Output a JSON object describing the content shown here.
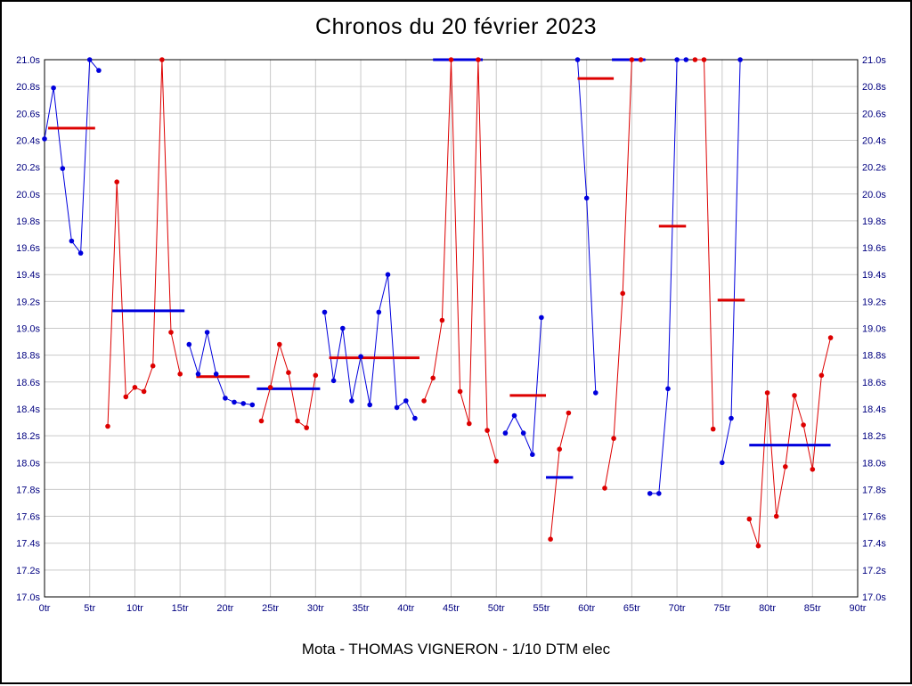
{
  "title": "Chronos du 20 février 2023",
  "footer": "Mota - THOMAS VIGNERON - 1/10 DTM elec",
  "chart_data": {
    "type": "line",
    "title": "Chronos du 20 février 2023",
    "x_unit": "tr",
    "y_unit": "s",
    "xlim": [
      0,
      90
    ],
    "ylim": [
      17.0,
      21.0
    ],
    "x_tick_step": 5,
    "y_tick_step": 0.2,
    "grid": true,
    "grid_color": "#c9c9c9",
    "frame_color": "#000000",
    "axis_label_color": "#000080",
    "legend": "none",
    "colors": {
      "blue": "#0000dd",
      "red": "#dd0000"
    },
    "x_ticks": [
      "0tr",
      "5tr",
      "10tr",
      "15tr",
      "20tr",
      "25tr",
      "30tr",
      "35tr",
      "40tr",
      "45tr",
      "50tr",
      "55tr",
      "60tr",
      "65tr",
      "70tr",
      "75tr",
      "80tr",
      "85tr",
      "90tr"
    ],
    "y_ticks": [
      "21.0s",
      "20.8s",
      "20.6s",
      "20.4s",
      "20.2s",
      "20.0s",
      "19.8s",
      "19.6s",
      "19.4s",
      "19.2s",
      "19.0s",
      "18.8s",
      "18.6s",
      "18.4s",
      "18.2s",
      "18.0s",
      "17.8s",
      "17.6s",
      "17.4s",
      "17.2s",
      "17.0s"
    ],
    "stints": [
      {
        "color": "blue",
        "laps": [
          [
            0,
            20.41
          ],
          [
            1,
            20.79
          ],
          [
            2,
            20.19
          ],
          [
            3,
            19.65
          ],
          [
            4,
            19.56
          ],
          [
            5,
            21.0
          ],
          [
            6,
            20.92
          ]
        ],
        "mean": {
          "value": 20.49,
          "from": 0.4,
          "to": 5.6,
          "color": "red"
        }
      },
      {
        "color": "red",
        "laps": [
          [
            7,
            18.27
          ],
          [
            8,
            20.09
          ],
          [
            9,
            18.49
          ],
          [
            10,
            18.56
          ],
          [
            11,
            18.53
          ],
          [
            12,
            18.72
          ],
          [
            13,
            21.0
          ],
          [
            14,
            18.97
          ],
          [
            15,
            18.66
          ]
        ],
        "mean": {
          "value": 19.13,
          "from": 7.5,
          "to": 15.5,
          "color": "blue"
        }
      },
      {
        "color": "blue",
        "laps": [
          [
            16,
            18.88
          ],
          [
            17,
            18.66
          ],
          [
            18,
            18.97
          ],
          [
            19,
            18.66
          ],
          [
            20,
            18.48
          ],
          [
            21,
            18.45
          ],
          [
            22,
            18.44
          ],
          [
            23,
            18.43
          ]
        ],
        "mean": {
          "value": 18.64,
          "from": 16.8,
          "to": 22.7,
          "color": "red"
        }
      },
      {
        "color": "red",
        "laps": [
          [
            24,
            18.31
          ],
          [
            25,
            18.56
          ],
          [
            26,
            18.88
          ],
          [
            27,
            18.67
          ],
          [
            28,
            18.31
          ],
          [
            29,
            18.26
          ],
          [
            30,
            18.65
          ]
        ],
        "mean": {
          "value": 18.55,
          "from": 23.5,
          "to": 30.5,
          "color": "blue"
        }
      },
      {
        "color": "blue",
        "laps": [
          [
            31,
            19.12
          ],
          [
            32,
            18.61
          ],
          [
            33,
            19.0
          ],
          [
            34,
            18.46
          ],
          [
            35,
            18.79
          ],
          [
            36,
            18.43
          ],
          [
            37,
            19.12
          ],
          [
            38,
            19.4
          ],
          [
            39,
            18.41
          ],
          [
            40,
            18.46
          ],
          [
            41,
            18.33
          ]
        ],
        "mean": {
          "value": 18.78,
          "from": 31.5,
          "to": 41.5,
          "color": "red"
        }
      },
      {
        "color": "red",
        "laps": [
          [
            42,
            18.46
          ],
          [
            43,
            18.63
          ],
          [
            44,
            19.06
          ],
          [
            45,
            21.0
          ],
          [
            46,
            18.53
          ],
          [
            47,
            18.29
          ],
          [
            48,
            21.0
          ],
          [
            49,
            18.24
          ],
          [
            50,
            18.01
          ]
        ],
        "mean": {
          "value": 21.0,
          "from": 43.0,
          "to": 48.5,
          "color": "blue"
        }
      },
      {
        "color": "blue",
        "laps": [
          [
            51,
            18.22
          ],
          [
            52,
            18.35
          ],
          [
            53,
            18.22
          ],
          [
            54,
            18.06
          ],
          [
            55,
            19.08
          ]
        ],
        "mean": {
          "value": 18.5,
          "from": 51.5,
          "to": 55.5,
          "color": "red"
        }
      },
      {
        "color": "red",
        "laps": [
          [
            56,
            17.43
          ],
          [
            57,
            18.1
          ],
          [
            58,
            18.37
          ]
        ],
        "mean": {
          "value": 17.89,
          "from": 55.5,
          "to": 58.5,
          "color": "blue"
        }
      },
      {
        "color": "blue",
        "laps": [
          [
            59,
            21.0
          ],
          [
            60,
            19.97
          ],
          [
            61,
            18.52
          ]
        ],
        "mean": {
          "value": 20.86,
          "from": 59.0,
          "to": 63.0,
          "color": "red"
        }
      },
      {
        "color": "red",
        "laps": [
          [
            62,
            17.81
          ],
          [
            63,
            18.18
          ],
          [
            64,
            19.26
          ],
          [
            65,
            21.0
          ],
          [
            66,
            21.0
          ]
        ],
        "mean": {
          "value": 21.0,
          "from": 62.8,
          "to": 66.5,
          "color": "blue"
        }
      },
      {
        "color": "blue",
        "laps": [
          [
            67,
            17.77
          ],
          [
            68,
            17.77
          ],
          [
            69,
            18.55
          ],
          [
            70,
            21.0
          ],
          [
            71,
            21.0
          ]
        ],
        "mean": {
          "value": 19.76,
          "from": 68.0,
          "to": 71.0,
          "color": "red"
        }
      },
      {
        "color": "red",
        "laps": [
          [
            72,
            21.0
          ],
          [
            73,
            21.0
          ],
          [
            74,
            18.25
          ]
        ]
      },
      {
        "color": "blue",
        "laps": [
          [
            75,
            18.0
          ],
          [
            76,
            18.33
          ],
          [
            77,
            21.0
          ]
        ],
        "mean": {
          "value": 19.21,
          "from": 74.5,
          "to": 77.5,
          "color": "red"
        }
      },
      {
        "color": "red",
        "laps": [
          [
            78,
            17.58
          ],
          [
            79,
            17.38
          ],
          [
            80,
            18.52
          ],
          [
            81,
            17.6
          ],
          [
            82,
            17.97
          ],
          [
            83,
            18.5
          ],
          [
            84,
            18.28
          ],
          [
            85,
            17.95
          ],
          [
            86,
            18.65
          ],
          [
            87,
            18.93
          ]
        ],
        "mean": {
          "value": 18.13,
          "from": 78.0,
          "to": 87.0,
          "color": "blue"
        }
      }
    ]
  }
}
